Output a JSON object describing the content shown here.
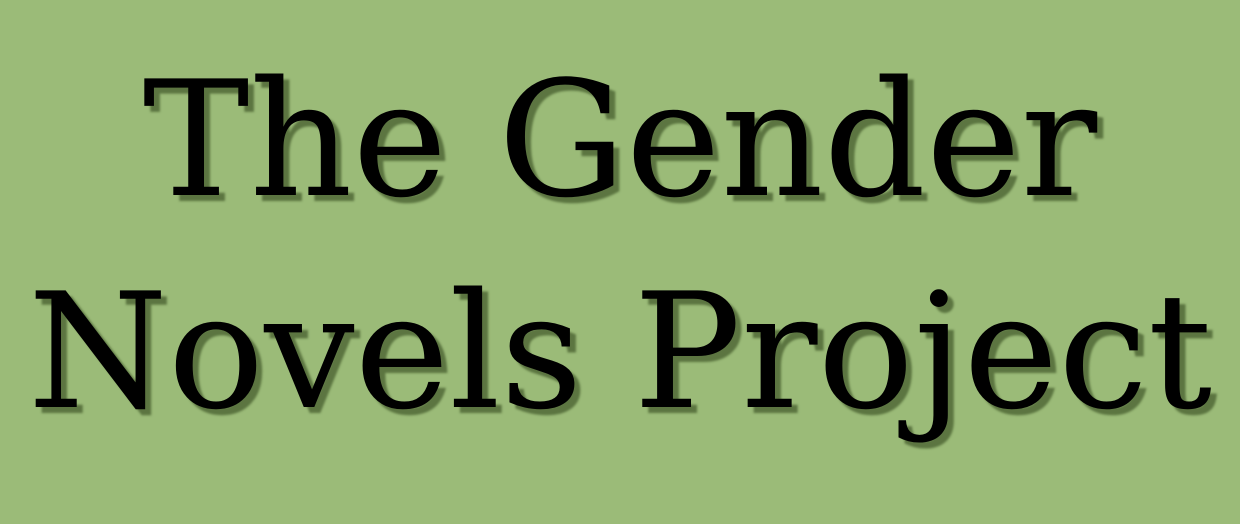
{
  "banner": {
    "line1": "The Gender",
    "line2": "Novels Project",
    "background_color": "#9bbb78",
    "text_color": "#000000"
  }
}
